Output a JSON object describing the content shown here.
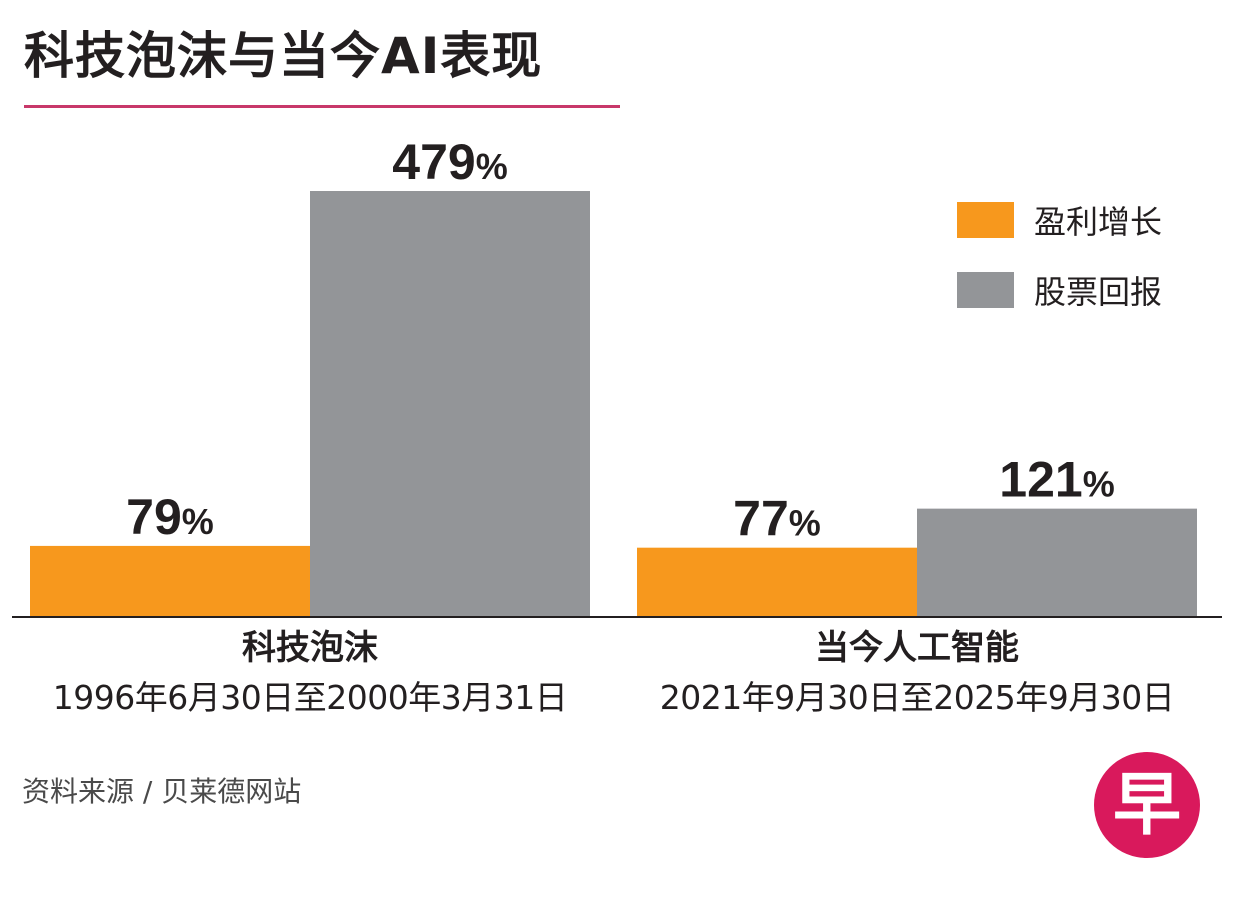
{
  "title": "科技泡沫与当今AI表现",
  "colors": {
    "title_rule": "#c8386a",
    "earnings": "#f7981d",
    "stock": "#939598",
    "axis": "#231f20",
    "logo": "#d9195c"
  },
  "chart_data": {
    "type": "bar",
    "title": "科技泡沫与当今AI表现",
    "categories": [
      "科技泡沫",
      "当今人工智能"
    ],
    "category_periods": [
      "1996年6月30日至2000年3月31日",
      "2021年9月30日至2025年9月30日"
    ],
    "series": [
      {
        "name": "盈利增长",
        "values": [
          79,
          77
        ],
        "labels": [
          "79%",
          "77%"
        ]
      },
      {
        "name": "股票回报",
        "values": [
          479,
          121
        ],
        "labels": [
          "479%",
          "121%"
        ]
      }
    ],
    "ylim": [
      0,
      479
    ],
    "grid": false,
    "legend_position": "top-right",
    "xlabel": "",
    "ylabel": ""
  },
  "legend": {
    "items": [
      {
        "label": "盈利增长"
      },
      {
        "label": "股票回报"
      }
    ]
  },
  "source": "资料来源 / 贝莱德网站",
  "logo": {
    "icon": "zaobao-logo-icon",
    "glyph": "早"
  }
}
